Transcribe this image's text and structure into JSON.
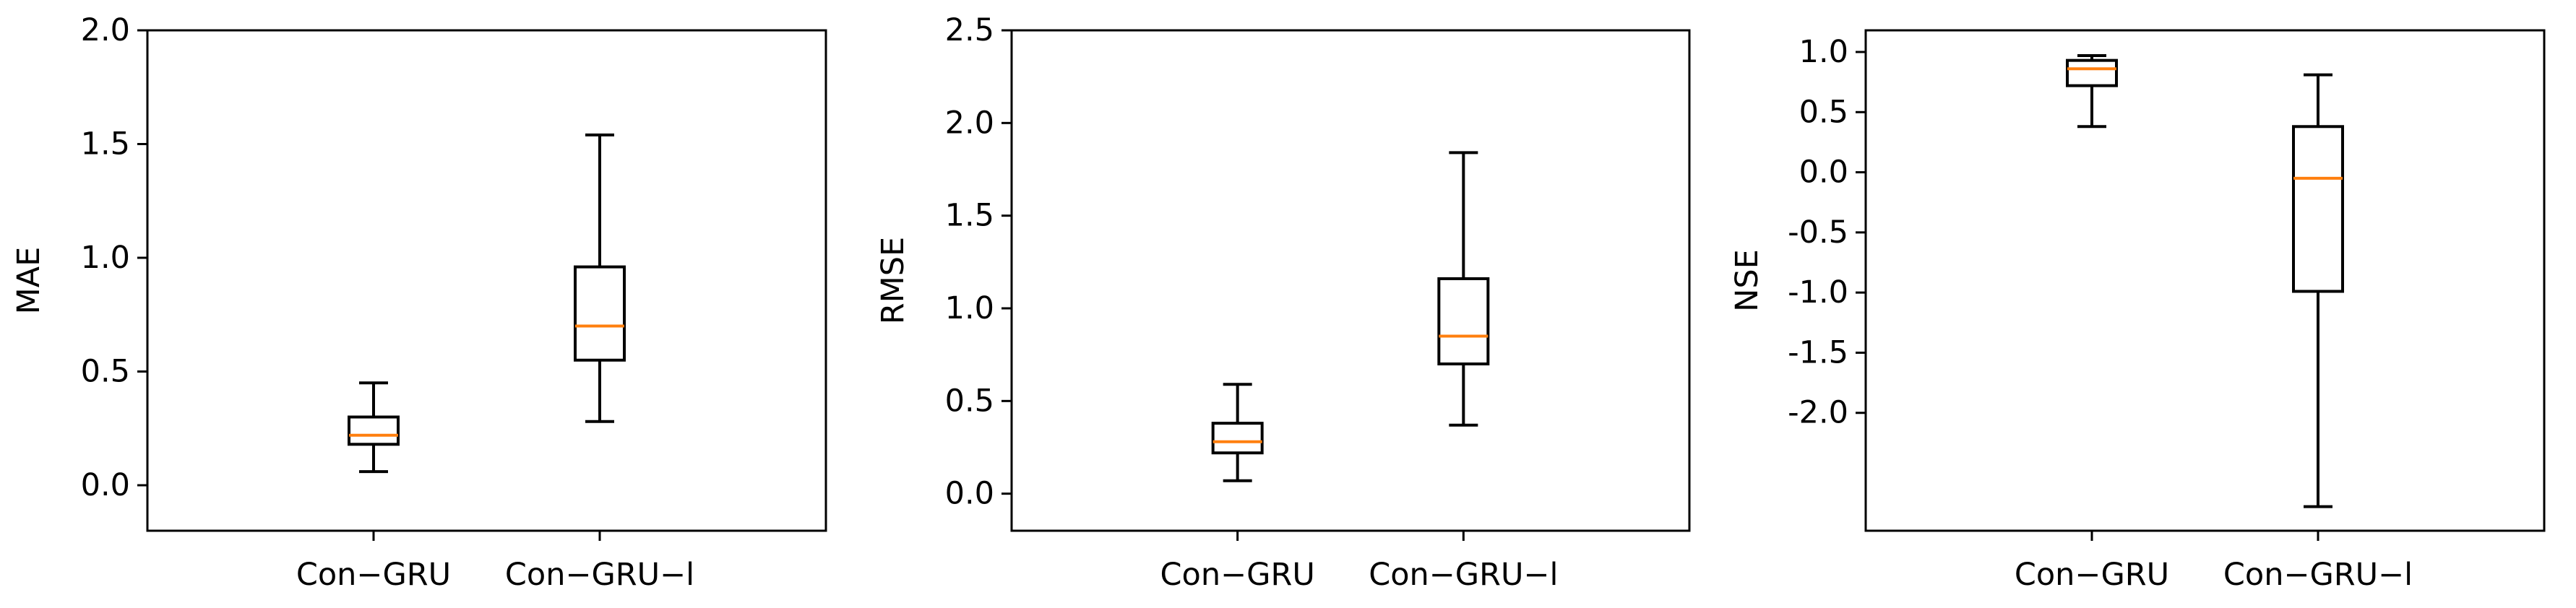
{
  "colors": {
    "box": "#000000",
    "median": "#ff7f0e",
    "background": "#ffffff"
  },
  "chart_data": [
    {
      "type": "box",
      "ylabel": "MAE",
      "ylim": [
        -0.2,
        2.0
      ],
      "yticks": [
        0.0,
        0.5,
        1.0,
        1.5,
        2.0
      ],
      "ytick_labels": [
        "0.0",
        "0.5",
        "1.0",
        "1.5",
        "2.0"
      ],
      "categories": [
        "Con−GRU",
        "Con−GRU−l"
      ],
      "boxes": [
        {
          "whisker_low": 0.06,
          "q1": 0.18,
          "median": 0.22,
          "q3": 0.3,
          "whisker_high": 0.45
        },
        {
          "whisker_low": 0.28,
          "q1": 0.55,
          "median": 0.7,
          "q3": 0.96,
          "whisker_high": 1.54
        }
      ]
    },
    {
      "type": "box",
      "ylabel": "RMSE",
      "ylim": [
        -0.2,
        2.5
      ],
      "yticks": [
        0.0,
        0.5,
        1.0,
        1.5,
        2.0,
        2.5
      ],
      "ytick_labels": [
        "0.0",
        "0.5",
        "1.0",
        "1.5",
        "2.0",
        "2.5"
      ],
      "categories": [
        "Con−GRU",
        "Con−GRU−l"
      ],
      "boxes": [
        {
          "whisker_low": 0.07,
          "q1": 0.22,
          "median": 0.28,
          "q3": 0.38,
          "whisker_high": 0.59
        },
        {
          "whisker_low": 0.37,
          "q1": 0.7,
          "median": 0.85,
          "q3": 1.16,
          "whisker_high": 1.84
        }
      ]
    },
    {
      "type": "box",
      "ylabel": "NSE",
      "ylim": [
        -2.98,
        1.18
      ],
      "yticks": [
        1.0,
        0.5,
        0.0,
        -0.5,
        -1.0,
        -1.5,
        -2.0
      ],
      "ytick_labels": [
        "1.0",
        "0.5",
        "0.0",
        "-0.5",
        "-1.0",
        "-1.5",
        "-2.0"
      ],
      "categories": [
        "Con−GRU",
        "Con−GRU−l"
      ],
      "boxes": [
        {
          "whisker_low": 0.38,
          "q1": 0.72,
          "median": 0.86,
          "q3": 0.93,
          "whisker_high": 0.97
        },
        {
          "whisker_low": -2.78,
          "q1": -0.99,
          "median": -0.05,
          "q3": 0.38,
          "whisker_high": 0.81
        }
      ]
    }
  ]
}
